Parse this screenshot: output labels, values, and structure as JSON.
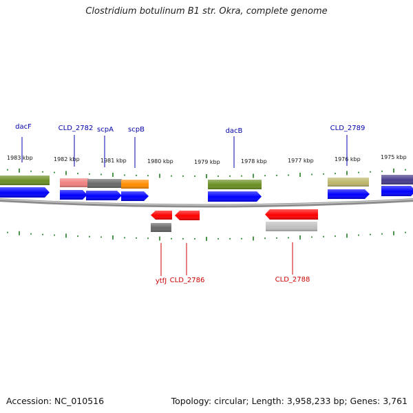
{
  "title": "Clostridium botulinum B1 str. Okra, complete genome",
  "footer": {
    "accession": "Accession: NC_010516",
    "summary": "Topology: circular; Length: 3,958,233 bp; Genes: 3,761"
  },
  "colors": {
    "forward_gene": "#0000ff",
    "reverse_gene": "#ff0000",
    "forward_label": "#0000aa",
    "reverse_label": "#cc0000",
    "tick": "#1e7a1e",
    "backbone": "#8c8c8c"
  },
  "kbp_labels": [
    "1983 kbp",
    "1982 kbp",
    "1981 kbp",
    "1980 kbp",
    "1979 kbp",
    "1978 kbp",
    "1977 kbp",
    "1976 kbp",
    "1975 kbp"
  ],
  "forward_labels": [
    "dacF",
    "CLD_2782",
    "scpA",
    "scpB",
    "dacB",
    "CLD_2789"
  ],
  "reverse_labels": [
    "ytfJ",
    "CLD_2786",
    "CLD_2788"
  ],
  "feature_colors": {
    "green_bar": "#6b8e23",
    "pink_bar": "#f08080",
    "gray_bar": "#696969",
    "orange_bar": "#ff8c00",
    "khaki_bar": "#bdb76b",
    "slate_bar": "#483d8b",
    "lightgray_bar": "#c0c0c0"
  }
}
